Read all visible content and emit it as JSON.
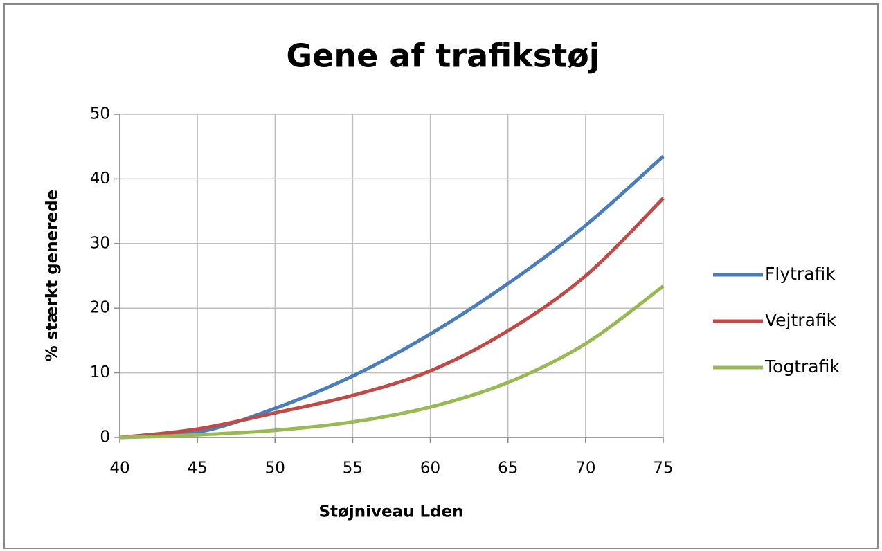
{
  "chart_data": {
    "type": "line",
    "title": "Gene af trafikstøj",
    "x_label": "Støjniveau Lden",
    "y_label": "% stærkt generede",
    "x": [
      40,
      45,
      50,
      55,
      60,
      65,
      70,
      75
    ],
    "series": [
      {
        "name": "Flytrafik",
        "color": "#4a7ebb",
        "values": [
          0,
          0.8,
          4.5,
          9.5,
          16,
          23.8,
          32.8,
          43.5
        ]
      },
      {
        "name": "Vejtrafik",
        "color": "#be4b48",
        "values": [
          0,
          1.3,
          3.8,
          6.5,
          10.3,
          16.5,
          25,
          37
        ]
      },
      {
        "name": "Togtrafik",
        "color": "#98b954",
        "values": [
          0,
          0.4,
          1.1,
          2.4,
          4.7,
          8.5,
          14.5,
          23.4
        ]
      }
    ],
    "xlim": [
      40,
      75
    ],
    "xticks": [
      40,
      45,
      50,
      55,
      60,
      65,
      70,
      75
    ],
    "ylim": [
      0,
      50
    ],
    "yticks": [
      0,
      10,
      20,
      30,
      40,
      50
    ],
    "grid": true,
    "legend": "right"
  }
}
